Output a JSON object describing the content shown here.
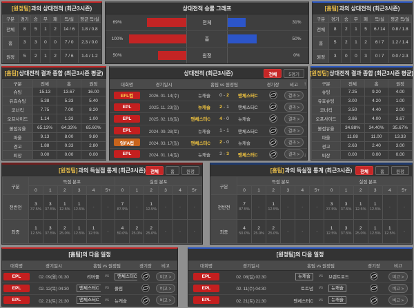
{
  "icons": {
    "scroll_up": "↑",
    "scroll_down": "↓"
  },
  "labels": {
    "vs": "vs",
    "empty": "-",
    "score_sep": "-"
  },
  "colors": {
    "accent_red": "#c62626",
    "accent_blue": "#2a57c4",
    "highlight_yellow": "#f3c63f",
    "bar_red": "#c32424",
    "bar_blue": "#2c55c9"
  },
  "panels": {
    "h2h_left": {
      "title_team": "[원정팀]",
      "title_rest": "과의 상대전적 (최근3시즌)",
      "headers": [
        "구분",
        "경기",
        "승",
        "무",
        "패",
        "득/실",
        "평균 득/실"
      ],
      "rows": [
        {
          "label": "전체",
          "cells": [
            "8",
            "5",
            "1",
            "2",
            "14 / 6",
            "1.8 / 0.8"
          ]
        },
        {
          "label": "홈",
          "cells": [
            "3",
            "3",
            "0",
            "0",
            "7 / 0",
            "2.3 / 0.0"
          ]
        },
        {
          "label": "원정",
          "cells": [
            "5",
            "2",
            "1",
            "2",
            "7 / 6",
            "1.4 / 1.2"
          ]
        }
      ]
    },
    "winrate": {
      "title": "상대전적 승률 그래프",
      "rows": [
        {
          "label": "전체",
          "left_pct": "69%",
          "left_val": 69,
          "right_pct": "31%",
          "right_val": 31
        },
        {
          "label": "홈",
          "left_pct": "100%",
          "left_val": 100,
          "right_pct": "50%",
          "right_val": 50
        },
        {
          "label": "원정",
          "left_pct": "50%",
          "left_val": 50,
          "right_pct": "0%",
          "right_val": 0
        }
      ]
    },
    "h2h_right": {
      "title_team": "[홈팀]",
      "title_rest": "과의 상대전적 (최근3시즌)",
      "headers": [
        "구분",
        "경기",
        "승",
        "무",
        "패",
        "득/실",
        "평균 득/실"
      ],
      "rows": [
        {
          "label": "전체",
          "cells": [
            "8",
            "2",
            "1",
            "5",
            "6 / 14",
            "0.8 / 1.8"
          ]
        },
        {
          "label": "홈",
          "cells": [
            "5",
            "2",
            "1",
            "2",
            "6 / 7",
            "1.2 / 1.4"
          ]
        },
        {
          "label": "원정",
          "cells": [
            "3",
            "0",
            "0",
            "3",
            "0 / 7",
            "0.0 / 2.3"
          ]
        }
      ]
    },
    "summary_left": {
      "title_team": "[홈팀]",
      "title_rest": " 상대전적 결과 종합 (최근3시즌 평균)",
      "headers": [
        "구분",
        "전체",
        "홈",
        "원정"
      ],
      "rows": [
        {
          "label": "슈팅",
          "cells": [
            "15.13",
            "13.67",
            "16.00"
          ]
        },
        {
          "label": "유효슈팅",
          "cells": [
            "5.38",
            "5.33",
            "5.40"
          ]
        },
        {
          "label": "코너킥",
          "cells": [
            "7.75",
            "7.00",
            "8.20"
          ]
        },
        {
          "label": "오프사이드",
          "cells": [
            "1.14",
            "1.33",
            "1.00"
          ]
        },
        {
          "label": "볼점유율",
          "cells": [
            "65.13%",
            "64.33%",
            "65.60%"
          ]
        },
        {
          "label": "파울",
          "cells": [
            "9.13",
            "8.00",
            "9.80"
          ]
        },
        {
          "label": "경고",
          "cells": [
            "1.88",
            "0.33",
            "2.80"
          ]
        },
        {
          "label": "퇴장",
          "cells": [
            "0.00",
            "0.00",
            "0.00"
          ]
        }
      ]
    },
    "matches": {
      "title": "상대전적 (최근3시즌)",
      "filters": [
        "전체",
        "5경기"
      ],
      "active_filter": 0,
      "headers": {
        "league": "대회명",
        "date": "경기일시",
        "teams": "홈팀 vs 원정팀",
        "stadium": "경기장",
        "note": "비고"
      },
      "result_label": "결과 >",
      "rows": [
        {
          "league": "EFL컵",
          "league_style": "eflcup",
          "date": "2026. 01. 14(수)",
          "home": "뉴캐슬",
          "away": "맨체스터C",
          "home_score": "0",
          "away_score": "2",
          "winner": "away"
        },
        {
          "league": "EPL",
          "league_style": "epl",
          "date": "2025. 11. 23(일)",
          "home": "뉴캐슬",
          "away": "맨체스터C",
          "home_score": "2",
          "away_score": "1",
          "winner": "home"
        },
        {
          "league": "EPL",
          "league_style": "epl",
          "date": "2025. 02. 16(일)",
          "home": "맨체스터C",
          "away": "뉴캐슬",
          "home_score": "4",
          "away_score": "0",
          "winner": "home"
        },
        {
          "league": "EPL",
          "league_style": "epl",
          "date": "2024. 09. 28(토)",
          "home": "뉴캐슬",
          "away": "맨체스터C",
          "home_score": "1",
          "away_score": "1",
          "winner": "none"
        },
        {
          "league": "잉FA컵",
          "league_style": "facup",
          "date": "2024. 03. 17(일)",
          "home": "맨체스터C",
          "away": "뉴캐슬",
          "home_score": "2",
          "away_score": "0",
          "winner": "home"
        },
        {
          "league": "EPL",
          "league_style": "epl",
          "date": "2024. 01. 14(일)",
          "home": "뉴캐슬",
          "away": "맨체스터C",
          "home_score": "2",
          "away_score": "3",
          "winner": "away"
        }
      ]
    },
    "summary_right": {
      "title_team": "[원정팀]",
      "title_rest": " 상대전적 결과 종합 (최근3시즌 평균)",
      "headers": [
        "구분",
        "전체",
        "홈",
        "원정"
      ],
      "rows": [
        {
          "label": "슈팅",
          "cells": [
            "7.25",
            "9.20",
            "4.00"
          ]
        },
        {
          "label": "유효슈팅",
          "cells": [
            "3.00",
            "4.20",
            "1.00"
          ]
        },
        {
          "label": "코너킥",
          "cells": [
            "3.50",
            "4.40",
            "2.00"
          ]
        },
        {
          "label": "오프사이드",
          "cells": [
            "3.86",
            "4.00",
            "3.67"
          ]
        },
        {
          "label": "볼점유율",
          "cells": [
            "34.88%",
            "34.40%",
            "35.67%"
          ]
        },
        {
          "label": "파울",
          "cells": [
            "11.88",
            "11.00",
            "13.33"
          ]
        },
        {
          "label": "경고",
          "cells": [
            "2.63",
            "2.40",
            "3.00"
          ]
        },
        {
          "label": "퇴장",
          "cells": [
            "0.00",
            "0.00",
            "0.00"
          ]
        }
      ]
    },
    "goals_left": {
      "title_team": "[원정팀]",
      "title_rest": "과의 득실점 통계 (최근3시즌)",
      "filters": [
        "전체",
        "홈",
        "원정"
      ],
      "active_filter": 0,
      "col_label": "구분",
      "group_scored": "득점 분포",
      "group_conceded": "실점 분포",
      "cols": [
        "0",
        "1",
        "2",
        "3",
        "4",
        "5+"
      ],
      "rows": [
        {
          "label": "전반전",
          "scored": [
            [
              "3",
              "37.5%"
            ],
            [
              "3",
              "37.5%"
            ],
            [
              "1",
              "12.5%"
            ],
            [
              "1",
              "12.5%"
            ],
            null,
            null
          ],
          "conceded": [
            [
              "7",
              "87.5%"
            ],
            null,
            [
              "1",
              "12.5%"
            ],
            null,
            null,
            null
          ]
        },
        {
          "label": "최종",
          "scored": [
            [
              "1",
              "12.5%"
            ],
            [
              "3",
              "37.5%"
            ],
            [
              "2",
              "25.0%"
            ],
            [
              "1",
              "12.5%"
            ],
            [
              "1",
              "12.5%"
            ],
            null
          ],
          "conceded": [
            [
              "4",
              "50.0%"
            ],
            [
              "2",
              "25.0%"
            ],
            [
              "2",
              "25.0%"
            ],
            null,
            null,
            null
          ]
        }
      ]
    },
    "goals_right": {
      "title_team": "[홈팀]",
      "title_rest": "과의 득실점 통계 (최근3시즌)",
      "filters": [
        "전체",
        "홈",
        "원정"
      ],
      "active_filter": 0,
      "col_label": "구분",
      "group_scored": "득점 분포",
      "group_conceded": "실점 분포",
      "cols": [
        "0",
        "1",
        "2",
        "3",
        "4",
        "5+"
      ],
      "rows": [
        {
          "label": "전반전",
          "scored": [
            [
              "7",
              "87.5%"
            ],
            null,
            [
              "1",
              "12.5%"
            ],
            null,
            null,
            null
          ],
          "conceded": [
            [
              "3",
              "37.5%"
            ],
            [
              "3",
              "37.5%"
            ],
            [
              "1",
              "12.5%"
            ],
            [
              "1",
              "12.5%"
            ],
            null,
            null
          ]
        },
        {
          "label": "최종",
          "scored": [
            [
              "4",
              "50.0%"
            ],
            [
              "2",
              "25.0%"
            ],
            [
              "2",
              "25.0%"
            ],
            null,
            null,
            null
          ],
          "conceded": [
            [
              "1",
              "12.5%"
            ],
            [
              "3",
              "37.5%"
            ],
            [
              "2",
              "25.0%"
            ],
            [
              "1",
              "12.5%"
            ],
            [
              "1",
              "12.5%"
            ],
            null
          ]
        }
      ]
    },
    "schedule_left": {
      "title": "[홈팀]의 다음 일정",
      "headers": {
        "league": "대회명",
        "date": "경기일시",
        "teams": "홈팀 vs 원정팀",
        "stadium": "경기장",
        "note": "비고"
      },
      "note_label": "비고 >",
      "rows": [
        {
          "league": "EPL",
          "league_style": "epl",
          "date": "02. 09(월) 01:30",
          "home": "리버풀",
          "away": "맨체스터C",
          "subject": "away"
        },
        {
          "league": "EPL",
          "league_style": "epl",
          "date": "02. 12(목) 04:30",
          "home": "맨체스터C",
          "away": "풀럼",
          "subject": "home"
        },
        {
          "league": "EPL",
          "league_style": "epl",
          "date": "02. 21(토) 21:30",
          "home": "맨체스터C",
          "away": "뉴캐슬",
          "subject": "home"
        }
      ]
    },
    "schedule_right": {
      "title": "[원정팀]의 다음 일정",
      "headers": {
        "league": "대회명",
        "date": "경기일시",
        "teams": "홈팀 vs 원정팀",
        "stadium": "경기장",
        "note": "비고"
      },
      "note_label": "비고 >",
      "rows": [
        {
          "league": "EPL",
          "league_style": "epl",
          "date": "02. 08(일) 02:30",
          "home": "뉴캐슬",
          "away": "브렌트포드",
          "subject": "home"
        },
        {
          "league": "EPL",
          "league_style": "epl",
          "date": "02. 11(수) 04:30",
          "home": "토트넘",
          "away": "뉴캐슬",
          "subject": "away"
        },
        {
          "league": "EPL",
          "league_style": "epl",
          "date": "02. 21(토) 21:30",
          "home": "맨체스터C",
          "away": "뉴캐슬",
          "subject": "away"
        }
      ]
    }
  },
  "chart_data": {
    "type": "bar",
    "title": "상대전적 승률 그래프",
    "categories": [
      "전체",
      "홈",
      "원정"
    ],
    "series": [
      {
        "name": "홈팀",
        "values": [
          69,
          100,
          50
        ],
        "color": "#c32424"
      },
      {
        "name": "원정팀",
        "values": [
          31,
          50,
          0
        ],
        "color": "#2c55c9"
      }
    ],
    "unit": "%",
    "xlim": [
      0,
      100
    ],
    "legend": "none",
    "grid": false
  }
}
